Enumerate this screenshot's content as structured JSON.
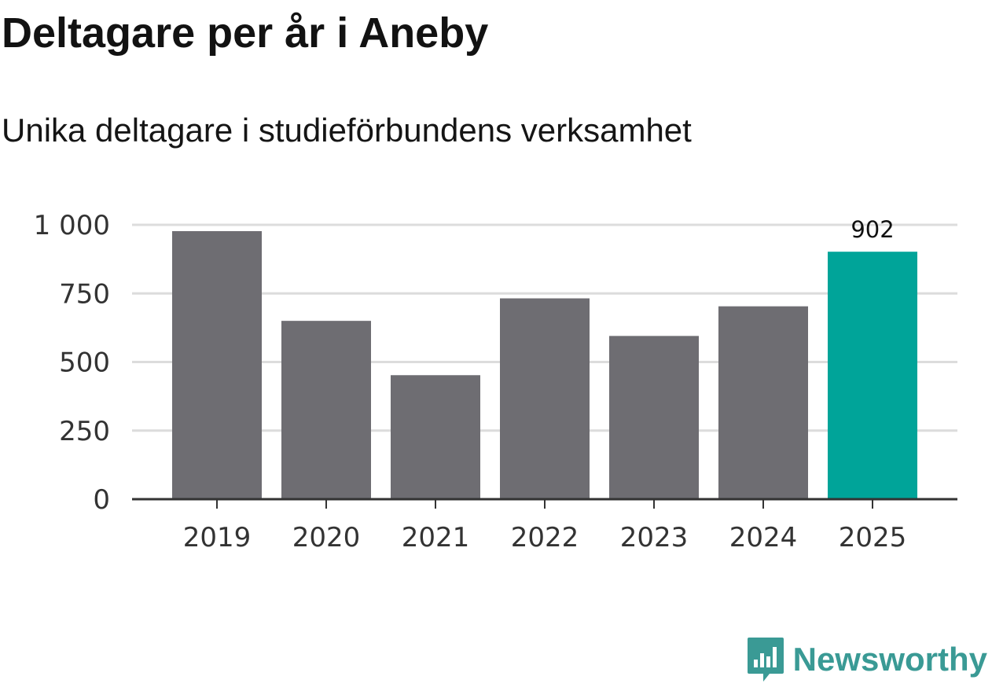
{
  "title": "Deltagare per år i Aneby",
  "subtitle": "Unika deltagare i studieförbundens verksamhet",
  "brand": {
    "name": "Newsworthy",
    "icon": "newsworthy-logo-icon",
    "color": "#3a9a95"
  },
  "chart_data": {
    "type": "bar",
    "categories": [
      "2019",
      "2020",
      "2021",
      "2022",
      "2023",
      "2024",
      "2025"
    ],
    "values": [
      977,
      650,
      452,
      732,
      595,
      703,
      902
    ],
    "colors": {
      "default": "#6e6d72",
      "highlight": "#00a499",
      "gridline": "#dcdcdc",
      "axis": "#333333"
    },
    "highlight_index": 6,
    "annotations": [
      {
        "category": "2025",
        "label": "902"
      }
    ],
    "yticks": [
      0,
      250,
      500,
      750,
      1000
    ],
    "ytick_labels": [
      "0",
      "250",
      "500",
      "750",
      "1 000"
    ],
    "ylim": [
      0,
      1000
    ],
    "xlabel": "",
    "ylabel": "",
    "grid": true
  }
}
